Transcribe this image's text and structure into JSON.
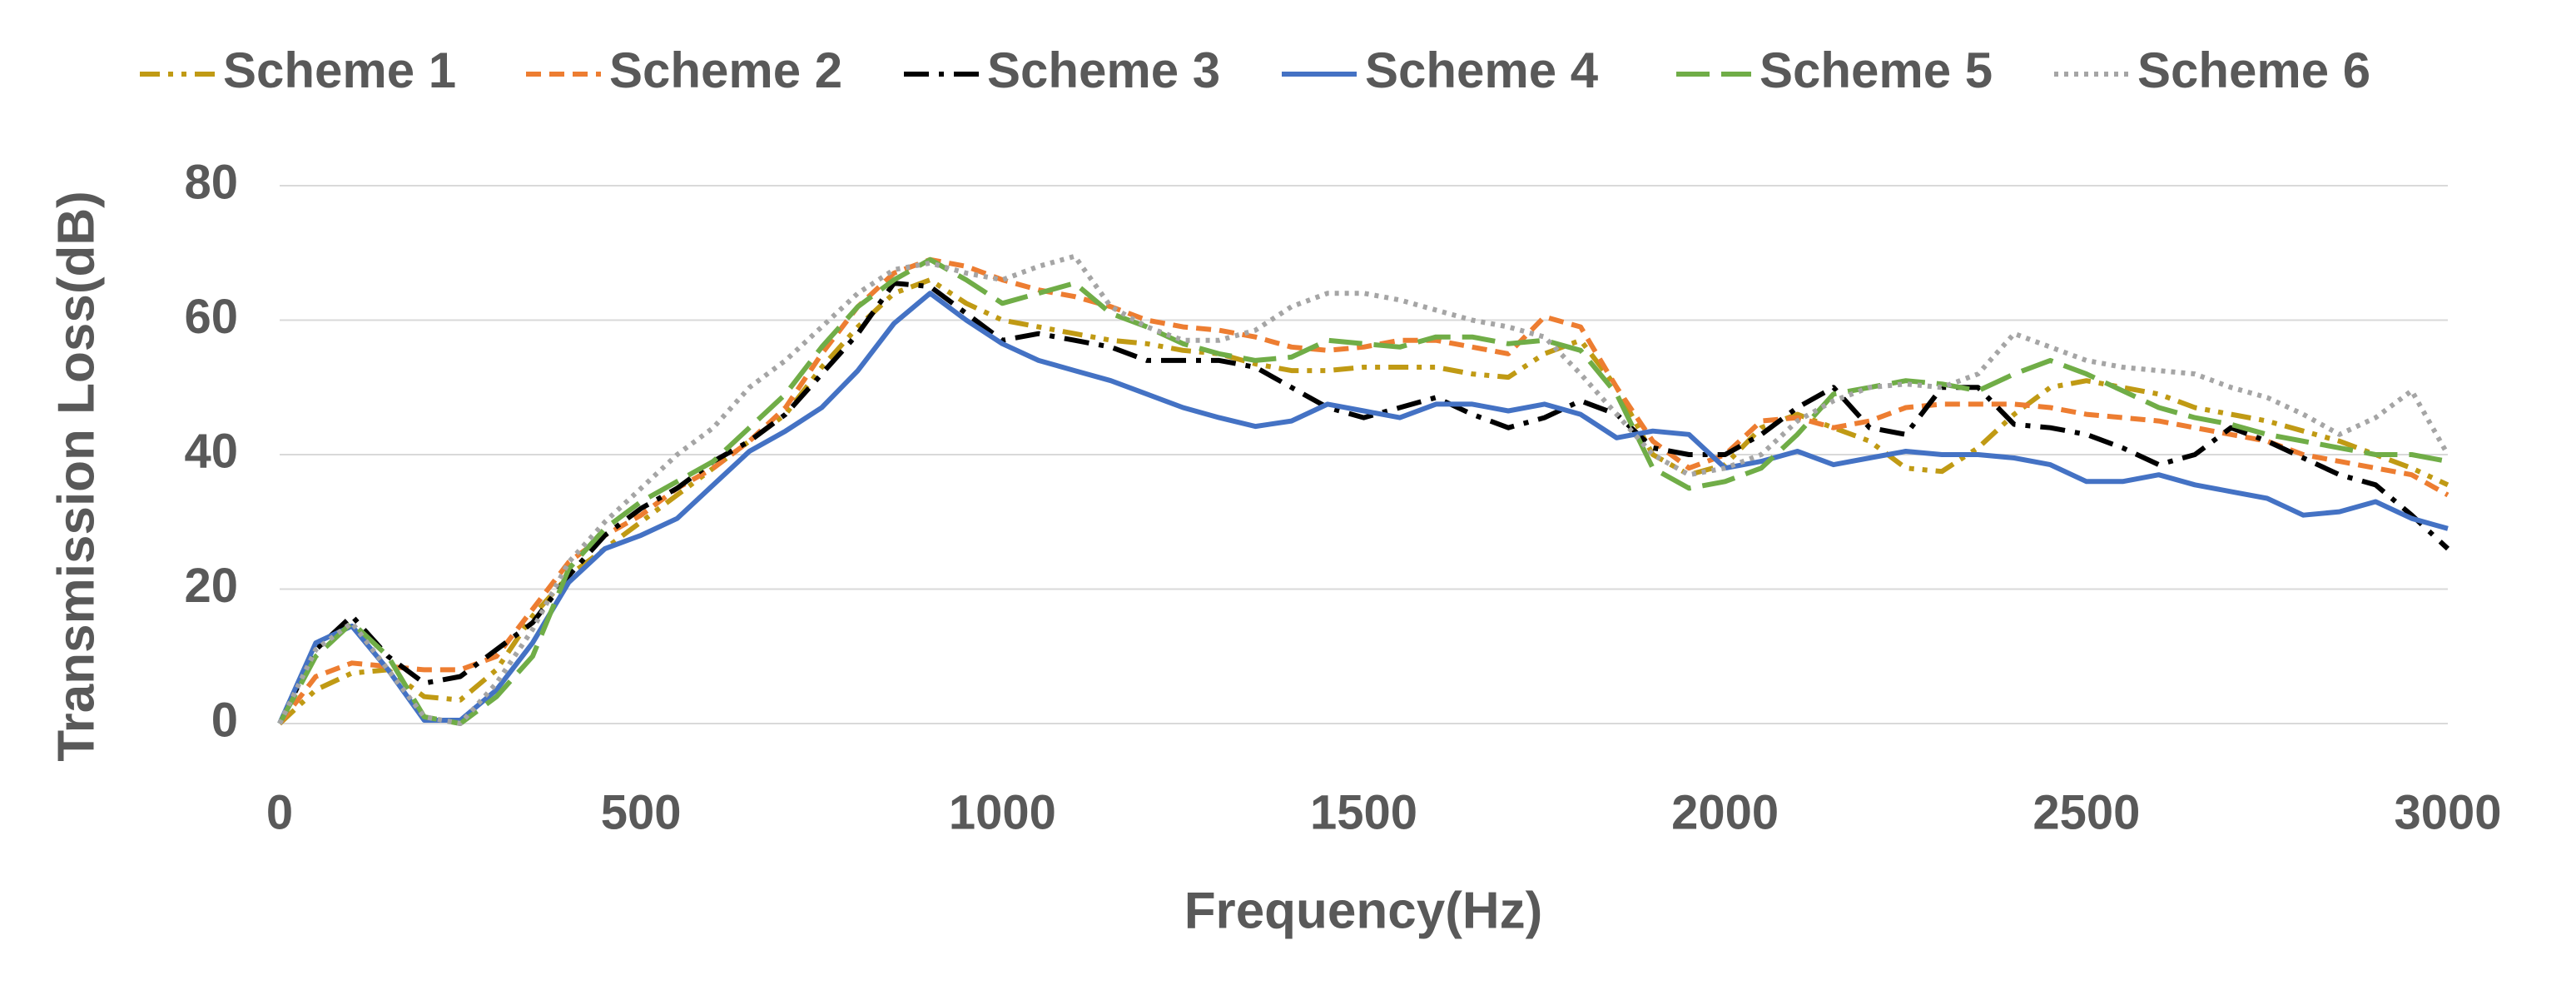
{
  "chart_data": {
    "type": "line",
    "x_label": "Frequency(Hz)",
    "y_label": "Transmission Loss(dB)",
    "x": [
      0,
      50,
      100,
      150,
      200,
      250,
      300,
      350,
      400,
      450,
      500,
      550,
      600,
      650,
      700,
      750,
      800,
      850,
      900,
      950,
      1000,
      1050,
      1100,
      1150,
      1200,
      1250,
      1300,
      1350,
      1400,
      1450,
      1500,
      1550,
      1600,
      1650,
      1700,
      1750,
      1800,
      1850,
      1900,
      1950,
      2000,
      2050,
      2100,
      2150,
      2200,
      2250,
      2300,
      2350,
      2400,
      2450,
      2500,
      2550,
      2600,
      2650,
      2700,
      2750,
      2800,
      2850,
      2900,
      2950,
      3000
    ],
    "xlim": [
      0,
      3000
    ],
    "xticks": [
      0,
      500,
      1000,
      1500,
      2000,
      2500,
      3000
    ],
    "ylim": [
      0,
      80
    ],
    "yticks": [
      0,
      20,
      40,
      60,
      80
    ],
    "grid": true,
    "legend": "top",
    "series": [
      {
        "name": "Scheme 1",
        "color": "#c09a14",
        "dash": "dashdotdot",
        "values": [
          0,
          5,
          7.5,
          8,
          4,
          3.5,
          8,
          16,
          22,
          26,
          30,
          34,
          38,
          42,
          46,
          53,
          59,
          64,
          66,
          62.5,
          60,
          59,
          58,
          57,
          56.5,
          55.5,
          55,
          53.5,
          52.5,
          52.5,
          53,
          53,
          53,
          52,
          51.5,
          55,
          57,
          50,
          40,
          37,
          38.5,
          44,
          46,
          44,
          42,
          38,
          37.5,
          41,
          46,
          50,
          51,
          50,
          49,
          47,
          46,
          45,
          43.5,
          42,
          40,
          38,
          35.5
        ]
      },
      {
        "name": "Scheme 2",
        "color": "#ed7d31",
        "dash": "dash",
        "values": [
          0,
          7,
          9,
          8.5,
          8,
          8,
          10,
          17,
          24,
          28,
          31,
          35,
          38,
          42,
          47,
          55,
          62,
          67,
          69,
          68,
          66,
          64.5,
          63.5,
          62,
          60,
          59,
          58.5,
          57.5,
          56,
          55.5,
          56,
          57,
          57,
          56,
          55,
          60.5,
          59,
          50,
          42,
          38,
          40,
          45,
          45.5,
          44,
          45,
          47,
          47.5,
          47.5,
          47.5,
          47,
          46,
          45.5,
          45,
          44,
          43,
          42,
          40,
          39,
          38,
          37,
          34
        ]
      },
      {
        "name": "Scheme 3",
        "color": "#000000",
        "dash": "dashdot",
        "values": [
          0,
          11,
          16,
          10,
          6,
          7,
          11,
          15,
          22,
          28,
          32,
          35,
          39,
          42,
          46,
          52,
          58,
          65.5,
          65,
          61,
          57,
          58,
          57,
          56,
          54,
          54,
          54,
          53,
          50,
          47,
          45.5,
          47,
          48.5,
          46,
          44,
          45.5,
          48,
          46,
          41,
          40,
          40,
          43,
          47,
          50,
          44,
          43,
          50,
          50,
          44.5,
          44,
          43,
          41,
          38.5,
          40,
          44,
          42,
          39.5,
          37,
          35.5,
          31,
          26
        ]
      },
      {
        "name": "Scheme 4",
        "color": "#4472c4",
        "dash": "solid",
        "values": [
          0,
          12,
          14.5,
          8,
          0.5,
          0.5,
          5,
          12,
          21,
          26,
          28,
          30.5,
          35.5,
          40.5,
          43.5,
          47,
          52.5,
          59.5,
          64,
          60,
          56.5,
          54,
          52.5,
          51,
          49,
          47,
          45.5,
          44.2,
          45,
          47.5,
          46.5,
          45.5,
          47.5,
          47.5,
          46.5,
          47.5,
          46,
          42.5,
          43.5,
          43,
          38,
          39,
          40.5,
          38.5,
          39.5,
          40.5,
          40,
          40,
          39.5,
          38.5,
          36,
          36,
          37,
          35.5,
          34.5,
          33.5,
          31,
          31.5,
          33,
          30.5,
          29
        ]
      },
      {
        "name": "Scheme 5",
        "color": "#70ad47",
        "dash": "longdash",
        "values": [
          0,
          10,
          15,
          10,
          1,
          0,
          4,
          10,
          23,
          29,
          33,
          36,
          39,
          44,
          49,
          56,
          62,
          66,
          69,
          66,
          62.5,
          64,
          65.5,
          61,
          59,
          56.5,
          55,
          54,
          54.5,
          57,
          56.5,
          56,
          57.5,
          57.5,
          56.5,
          57,
          55.5,
          49,
          38,
          35,
          36,
          38,
          43,
          49,
          50,
          51,
          50.5,
          49.5,
          52,
          54,
          52,
          49.5,
          47,
          45.5,
          44.5,
          43,
          42,
          41,
          40,
          40,
          39
        ]
      },
      {
        "name": "Scheme 6",
        "color": "#a5a5a5",
        "dash": "dot",
        "values": [
          0,
          11,
          15,
          8,
          1,
          0,
          6,
          14,
          24,
          30,
          35,
          40,
          44,
          50,
          54,
          59,
          64,
          67.5,
          68.5,
          67,
          66,
          68,
          69.5,
          62,
          59,
          57,
          57,
          58.5,
          62,
          64,
          64,
          63,
          61.5,
          60,
          59,
          57.5,
          52,
          46,
          40,
          37,
          38,
          40,
          45,
          48,
          50,
          50.5,
          50,
          52,
          58,
          56,
          54,
          53,
          52.5,
          52,
          50,
          48.5,
          46,
          43,
          45.5,
          49.5,
          40
        ]
      }
    ]
  }
}
